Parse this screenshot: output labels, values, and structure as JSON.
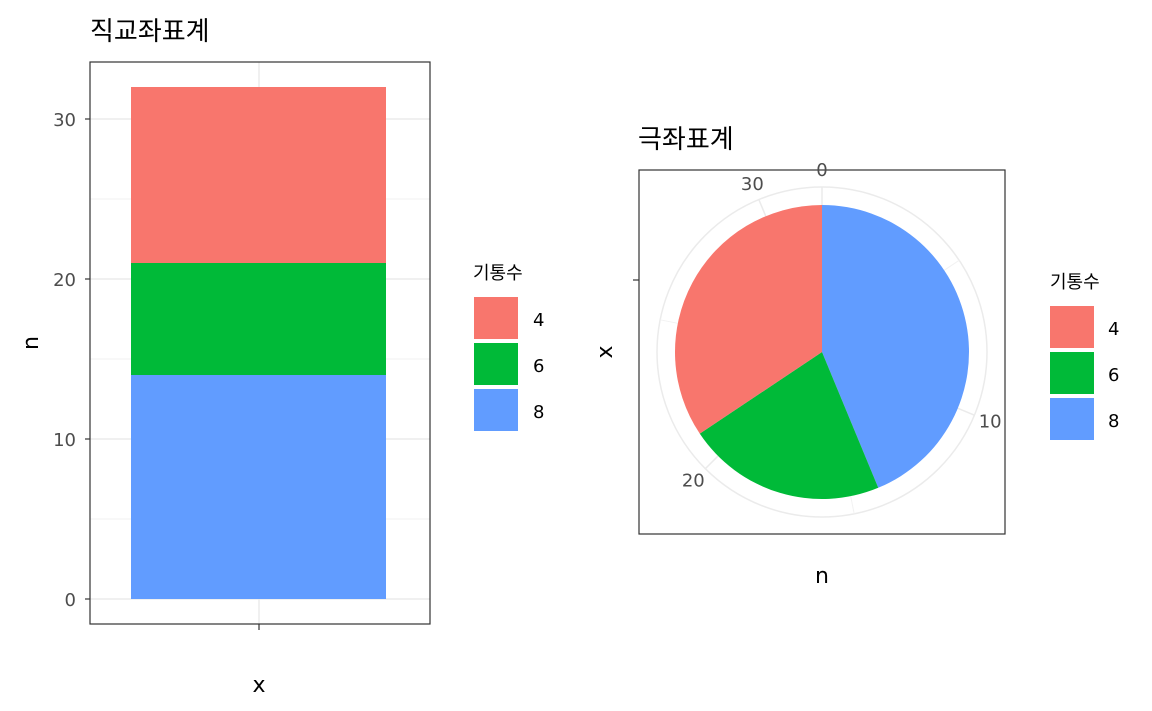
{
  "chart_data": [
    {
      "type": "bar",
      "title": "직교좌표계",
      "xlabel": "x",
      "ylabel": "n",
      "categories": [
        ""
      ],
      "stacked": true,
      "series": [
        {
          "name": "4",
          "values": [
            11
          ],
          "color": "#F8766D"
        },
        {
          "name": "6",
          "values": [
            7
          ],
          "color": "#00BA38"
        },
        {
          "name": "8",
          "values": [
            14
          ],
          "color": "#619CFF"
        }
      ],
      "ylim": [
        0,
        32
      ],
      "yticks": [
        "0",
        "10",
        "20",
        "30"
      ],
      "legend": {
        "title": "기통수",
        "position": "right",
        "items": [
          "4",
          "6",
          "8"
        ]
      },
      "grid": true,
      "theme": "bw"
    },
    {
      "type": "pie",
      "title": "극좌표계",
      "xlabel": "n",
      "ylabel": "x",
      "labels": [
        "4",
        "6",
        "8"
      ],
      "values": [
        11,
        7,
        14
      ],
      "colors": [
        "#F8766D",
        "#00BA38",
        "#619CFF"
      ],
      "angular_ticks": [
        "0",
        "10",
        "20",
        "30"
      ],
      "angular_tick_values": [
        0,
        10,
        20,
        30
      ],
      "total": 32,
      "legend": {
        "title": "기통수",
        "position": "right",
        "items": [
          "4",
          "6",
          "8"
        ]
      },
      "grid": true,
      "theme": "bw"
    }
  ]
}
